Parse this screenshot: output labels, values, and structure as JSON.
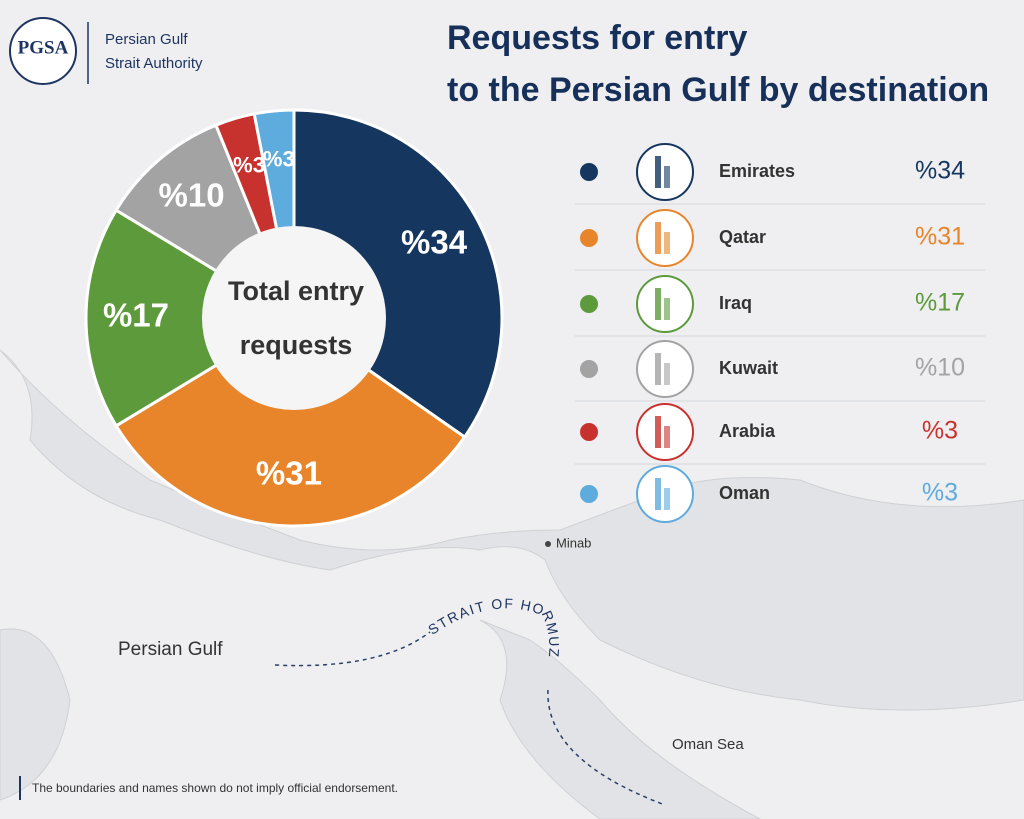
{
  "header": {
    "logo": "PGSA",
    "org": [
      "Persian Gulf",
      "Strait Authority"
    ]
  },
  "chart_data": {
    "type": "pie",
    "title": [
      "Requests for entry",
      "to the Persian Gulf by destination"
    ],
    "center_label": [
      "Total entry",
      "requests"
    ],
    "categories": [
      "Emirates",
      "Qatar",
      "Iraq",
      "Kuwait",
      "Arabia",
      "Oman"
    ],
    "values": [
      34,
      31,
      17,
      10,
      3,
      3
    ],
    "value_labels": [
      "%34",
      "%31",
      "%17",
      "%10",
      "%3",
      "%3"
    ],
    "colors": [
      "#14365f",
      "#e8852a",
      "#5c9a3c",
      "#a3a3a3",
      "#c8322e",
      "#5eabdd"
    ]
  },
  "map": {
    "labels": [
      "Minab",
      "Persian Gulf",
      "STRAIT OF HORMUZ",
      "Oman Sea"
    ]
  },
  "footer": {
    "disclaimer": "The boundaries and names shown do not imply official endorsement."
  }
}
